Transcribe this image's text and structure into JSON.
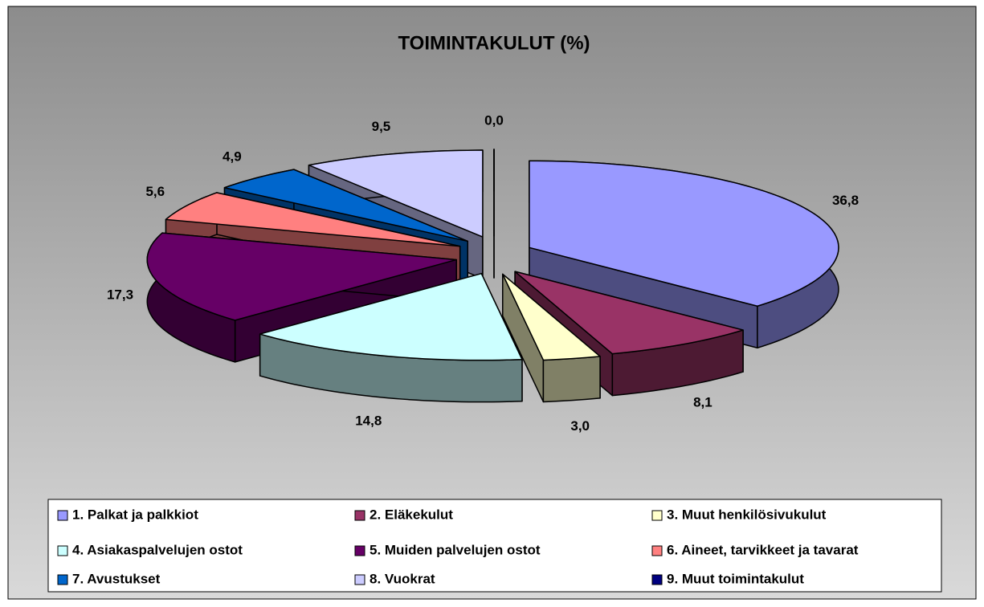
{
  "chart_data": {
    "type": "pie3d",
    "title": "TOIMINTAKULUT (%)",
    "categories": [
      "1. Palkat ja palkkiot",
      "2. Eläkekulut",
      "3. Muut henkilösivukulut",
      "4. Asiakaspalvelujen ostot",
      "5. Muiden palvelujen ostot",
      "6. Aineet, tarvikkeet ja tavarat",
      "7. Avustukset",
      "8. Vuokrat",
      "9. Muut toimintakulut"
    ],
    "values": [
      36.8,
      8.1,
      3.0,
      14.8,
      17.3,
      5.6,
      4.9,
      9.5,
      0.0
    ],
    "value_labels": [
      "36,8",
      "8,1",
      "3,0",
      "14,8",
      "17,3",
      "5,6",
      "4,9",
      "9,5",
      "0,0"
    ],
    "colors": [
      "#9999ff",
      "#993366",
      "#ffffcc",
      "#ccffff",
      "#660066",
      "#ff8080",
      "#0066cc",
      "#ccccff",
      "#000080"
    ],
    "legend": "bottom"
  }
}
